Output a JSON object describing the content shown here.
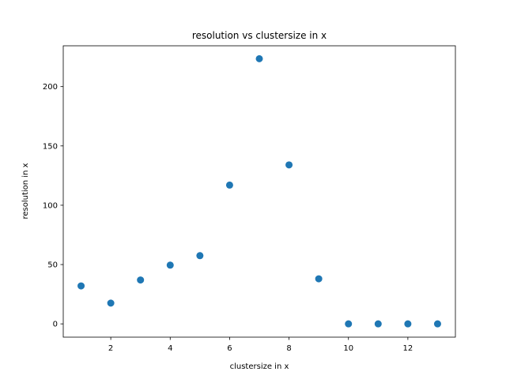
{
  "chart_data": {
    "type": "scatter",
    "title": "resolution vs clustersize in x",
    "xlabel": "clustersize in x",
    "ylabel": "resolution in x",
    "xlim": [
      0.4,
      13.6
    ],
    "ylim": [
      -11.2,
      234.4
    ],
    "xticks": [
      2,
      4,
      6,
      8,
      10,
      12
    ],
    "yticks": [
      0,
      50,
      100,
      150,
      200
    ],
    "grid": false,
    "series": [
      {
        "color": "#1f77b4",
        "points": [
          {
            "x": 1,
            "y": 32
          },
          {
            "x": 2,
            "y": 17.5
          },
          {
            "x": 3,
            "y": 37
          },
          {
            "x": 4,
            "y": 49.5
          },
          {
            "x": 5,
            "y": 57.5
          },
          {
            "x": 6,
            "y": 117
          },
          {
            "x": 7,
            "y": 223.5
          },
          {
            "x": 8,
            "y": 134
          },
          {
            "x": 9,
            "y": 38
          },
          {
            "x": 10,
            "y": 0
          },
          {
            "x": 11,
            "y": 0
          },
          {
            "x": 12,
            "y": 0
          },
          {
            "x": 13,
            "y": 0
          }
        ]
      }
    ]
  }
}
